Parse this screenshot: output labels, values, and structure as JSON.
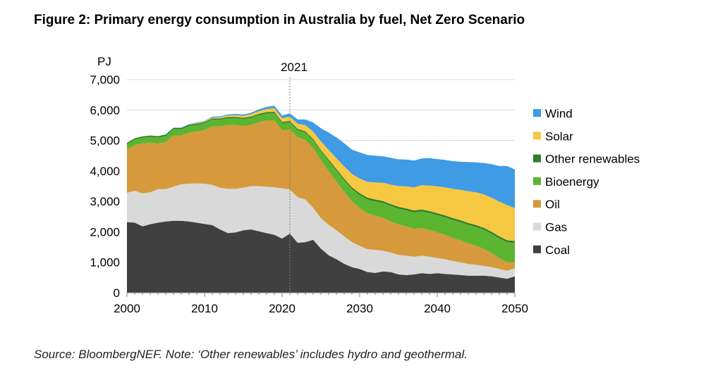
{
  "title": "Figure 2: Primary energy consumption in Australia by fuel, Net Zero Scenario",
  "source": "Source: BloombergNEF. Note: ‘Other renewables’ includes hydro and geothermal.",
  "chart_data": {
    "type": "area",
    "stacked": true,
    "ylabel": "PJ",
    "ylim": [
      0,
      7000
    ],
    "xlim": [
      2000,
      2050
    ],
    "yticks": [
      "0",
      "1,000",
      "2,000",
      "3,000",
      "4,000",
      "5,000",
      "6,000",
      "7,000"
    ],
    "xticks": [
      "2000",
      "2010",
      "2020",
      "2030",
      "2040",
      "2050"
    ],
    "grid": "horizontal",
    "legend_position": "right",
    "annotation": {
      "x": 2021,
      "label": "2021"
    },
    "x": [
      2000,
      2001,
      2002,
      2003,
      2004,
      2005,
      2006,
      2007,
      2008,
      2009,
      2010,
      2011,
      2012,
      2013,
      2014,
      2015,
      2016,
      2017,
      2018,
      2019,
      2020,
      2021,
      2022,
      2023,
      2024,
      2025,
      2026,
      2027,
      2028,
      2029,
      2030,
      2031,
      2032,
      2033,
      2034,
      2035,
      2036,
      2037,
      2038,
      2039,
      2040,
      2041,
      2042,
      2043,
      2044,
      2045,
      2046,
      2047,
      2048,
      2049,
      2050
    ],
    "series": [
      {
        "name": "Coal",
        "color": "#404040",
        "values": [
          2320,
          2300,
          2180,
          2250,
          2300,
          2340,
          2360,
          2360,
          2340,
          2300,
          2260,
          2220,
          2080,
          1960,
          1980,
          2050,
          2080,
          2020,
          1960,
          1900,
          1780,
          1940,
          1640,
          1660,
          1740,
          1450,
          1230,
          1100,
          950,
          840,
          780,
          680,
          650,
          700,
          680,
          600,
          580,
          600,
          640,
          620,
          640,
          620,
          600,
          580,
          560,
          560,
          560,
          540,
          500,
          460,
          540
        ]
      },
      {
        "name": "Gas",
        "color": "#d9d9d9",
        "values": [
          960,
          1050,
          1080,
          1050,
          1100,
          1060,
          1120,
          1200,
          1240,
          1290,
          1320,
          1320,
          1370,
          1450,
          1430,
          1400,
          1420,
          1480,
          1520,
          1560,
          1650,
          1450,
          1500,
          1400,
          1050,
          1000,
          1000,
          950,
          900,
          820,
          760,
          750,
          760,
          680,
          640,
          640,
          640,
          580,
          580,
          560,
          500,
          480,
          440,
          420,
          380,
          360,
          320,
          300,
          280,
          260,
          260
        ]
      },
      {
        "name": "Oil",
        "color": "#d69a3c",
        "values": [
          1420,
          1500,
          1640,
          1630,
          1500,
          1550,
          1680,
          1600,
          1680,
          1700,
          1760,
          1920,
          2010,
          2100,
          2090,
          2020,
          2010,
          2100,
          2180,
          2200,
          1900,
          1970,
          1960,
          1960,
          1960,
          1900,
          1760,
          1600,
          1460,
          1340,
          1240,
          1180,
          1120,
          1080,
          1020,
          1000,
          960,
          920,
          900,
          880,
          840,
          800,
          760,
          720,
          680,
          620,
          560,
          460,
          360,
          280,
          200
        ]
      },
      {
        "name": "Bioenergy",
        "color": "#5cb531",
        "values": [
          180,
          180,
          190,
          190,
          200,
          200,
          210,
          210,
          210,
          220,
          220,
          220,
          220,
          220,
          230,
          230,
          230,
          230,
          230,
          240,
          240,
          240,
          240,
          240,
          260,
          300,
          330,
          360,
          390,
          410,
          430,
          450,
          470,
          490,
          510,
          520,
          530,
          540,
          550,
          560,
          570,
          580,
          590,
          600,
          610,
          620,
          630,
          640,
          650,
          660,
          640
        ]
      },
      {
        "name": "Other renewables",
        "color": "#2e7d2c",
        "values": [
          40,
          40,
          40,
          40,
          40,
          40,
          40,
          40,
          40,
          40,
          40,
          40,
          40,
          40,
          40,
          40,
          40,
          40,
          40,
          40,
          40,
          40,
          40,
          40,
          40,
          40,
          50,
          50,
          50,
          50,
          60,
          60,
          60,
          60,
          60,
          60,
          60,
          60,
          60,
          60,
          60,
          60,
          60,
          60,
          60,
          60,
          60,
          60,
          60,
          60,
          60
        ]
      },
      {
        "name": "Solar",
        "color": "#f6c842",
        "values": [
          0,
          0,
          0,
          0,
          0,
          0,
          0,
          0,
          10,
          20,
          20,
          30,
          40,
          50,
          60,
          70,
          80,
          90,
          100,
          120,
          120,
          140,
          170,
          200,
          240,
          280,
          320,
          360,
          400,
          440,
          480,
          520,
          560,
          600,
          640,
          680,
          720,
          760,
          800,
          840,
          880,
          920,
          960,
          1000,
          1040,
          1080,
          1100,
          1120,
          1140,
          1160,
          1080
        ]
      },
      {
        "name": "Wind",
        "color": "#3f9be3",
        "values": [
          0,
          0,
          0,
          0,
          0,
          10,
          10,
          10,
          20,
          20,
          20,
          30,
          30,
          30,
          40,
          40,
          50,
          60,
          70,
          80,
          90,
          110,
          140,
          190,
          300,
          430,
          570,
          680,
          760,
          800,
          860,
          880,
          880,
          870,
          880,
          880,
          880,
          880,
          880,
          900,
          900,
          900,
          910,
          920,
          960,
          980,
          1030,
          1100,
          1170,
          1280,
          1270
        ]
      }
    ]
  }
}
